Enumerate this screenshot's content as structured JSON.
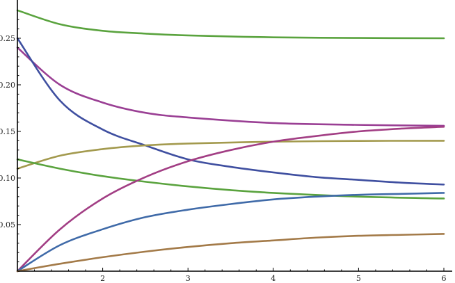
{
  "chart_data": {
    "type": "line",
    "title": "",
    "xlabel": "",
    "ylabel": "",
    "xlim": [
      1,
      6
    ],
    "ylim": [
      0,
      0.28
    ],
    "x_ticks": [
      2,
      3,
      4,
      5,
      6
    ],
    "x_tick_labels": [
      "2",
      "3",
      "4",
      "5",
      "6"
    ],
    "y_ticks": [
      0.05,
      0.1,
      0.15,
      0.2,
      0.25
    ],
    "y_tick_labels": [
      "0.05",
      "0.10",
      "0.15",
      "0.20",
      "0.25"
    ],
    "grid": false,
    "series": [
      {
        "color": "#5aa33e",
        "x": [
          1,
          1.5,
          2,
          2.5,
          3,
          4,
          5,
          6
        ],
        "y": [
          0.28,
          0.265,
          0.258,
          0.255,
          0.253,
          0.251,
          0.2503,
          0.25
        ]
      },
      {
        "color": "#9a3f94",
        "x": [
          1,
          1.5,
          2,
          2.5,
          3,
          4,
          5,
          6
        ],
        "y": [
          0.24,
          0.2,
          0.181,
          0.17,
          0.165,
          0.159,
          0.157,
          0.156
        ]
      },
      {
        "color": "#3f4fa0",
        "x": [
          1,
          1.5,
          2,
          2.5,
          3,
          3.5,
          4,
          4.5,
          5,
          5.5,
          6
        ],
        "y": [
          0.25,
          0.183,
          0.152,
          0.135,
          0.12,
          0.112,
          0.106,
          0.101,
          0.098,
          0.095,
          0.093
        ]
      },
      {
        "color": "#a39a4e",
        "x": [
          1,
          1.5,
          2,
          2.5,
          3,
          4,
          5,
          6
        ],
        "y": [
          0.11,
          0.124,
          0.131,
          0.135,
          0.137,
          0.139,
          0.1398,
          0.14
        ]
      },
      {
        "color": "#5aa33e",
        "x": [
          1,
          1.5,
          2,
          2.5,
          3,
          3.5,
          4,
          5,
          6
        ],
        "y": [
          0.12,
          0.11,
          0.102,
          0.096,
          0.091,
          0.087,
          0.084,
          0.08,
          0.078
        ]
      },
      {
        "color": "#a23e84",
        "x": [
          1,
          1.5,
          2,
          2.5,
          3,
          3.5,
          4,
          4.5,
          5,
          5.5,
          6
        ],
        "y": [
          0.0,
          0.045,
          0.078,
          0.101,
          0.118,
          0.13,
          0.139,
          0.145,
          0.15,
          0.153,
          0.155
        ]
      },
      {
        "color": "#3f6aa8",
        "x": [
          1,
          1.5,
          2,
          2.5,
          3,
          3.5,
          4,
          4.5,
          5,
          5.5,
          6
        ],
        "y": [
          0.0,
          0.028,
          0.045,
          0.058,
          0.066,
          0.072,
          0.077,
          0.08,
          0.082,
          0.083,
          0.084
        ]
      },
      {
        "color": "#a37a48",
        "x": [
          1,
          1.5,
          2,
          2.5,
          3,
          3.5,
          4,
          4.5,
          5,
          5.5,
          6
        ],
        "y": [
          0.0,
          0.008,
          0.015,
          0.021,
          0.026,
          0.03,
          0.033,
          0.036,
          0.038,
          0.039,
          0.04
        ]
      }
    ]
  }
}
